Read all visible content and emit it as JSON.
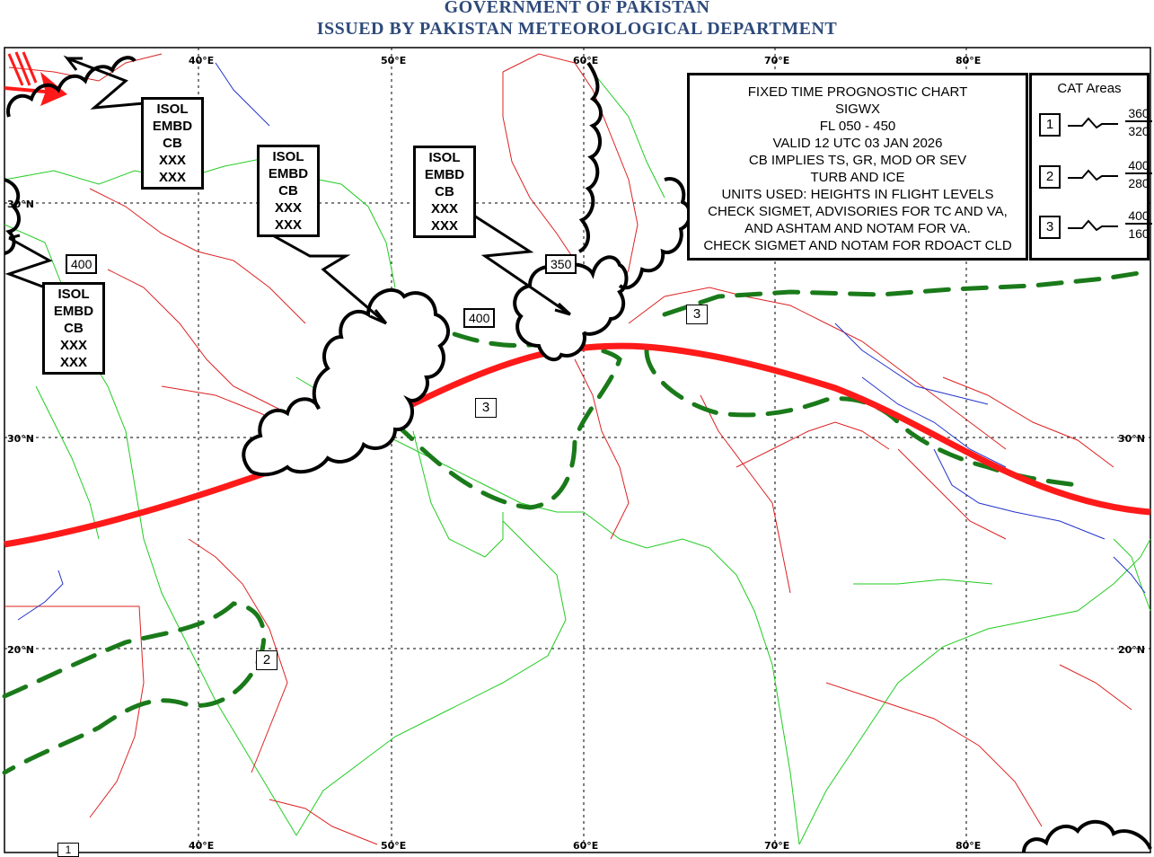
{
  "header": {
    "line1": "GOVERNMENT OF PAKISTAN",
    "line2": "ISSUED BY PAKISTAN METEOROLOGICAL DEPARTMENT"
  },
  "grid_labels": {
    "top": [
      "40°E",
      "50°E",
      "60°E",
      "70°E",
      "80°E"
    ],
    "bottom": [
      "40°E",
      "50°E",
      "60°E",
      "70°E",
      "80°E"
    ],
    "left": [
      "30°N",
      "30°N",
      "20°N"
    ],
    "right": [
      "30°N",
      "20°N"
    ]
  },
  "cb_boxes": [
    {
      "lines": [
        "ISOL",
        "EMBD",
        "CB",
        "XXX",
        "XXX"
      ]
    },
    {
      "lines": [
        "ISOL",
        "EMBD",
        "CB",
        "XXX",
        "XXX"
      ]
    },
    {
      "lines": [
        "ISOL",
        "EMBD",
        "CB",
        "XXX",
        "XXX"
      ]
    },
    {
      "lines": [
        "ISOL",
        "EMBD",
        "CB",
        "XXX",
        "XXX"
      ]
    }
  ],
  "flight_levels": [
    "400",
    "400",
    "350"
  ],
  "cat_area_labels": [
    "3",
    "3",
    "2",
    "1"
  ],
  "info": {
    "lines": [
      "FIXED TIME PROGNOSTIC CHART",
      "SIGWX",
      "FL 050 - 450",
      "VALID 12 UTC 03 JAN 2026",
      "CB IMPLIES TS, GR, MOD OR SEV",
      "TURB AND ICE",
      "UNITS USED: HEIGHTS IN FLIGHT LEVELS",
      "CHECK SIGMET, ADVISORIES FOR TC AND VA,",
      "AND ASHTAM AND NOTAM FOR VA.",
      "CHECK SIGMET AND NOTAM FOR RDOACT CLD"
    ]
  },
  "cat_legend": {
    "title": "CAT Areas",
    "rows": [
      {
        "num": "1",
        "top": "360",
        "bottom": "320"
      },
      {
        "num": "2",
        "top": "400",
        "bottom": "280"
      },
      {
        "num": "3",
        "top": "400",
        "bottom": "160"
      }
    ]
  },
  "colors": {
    "jet_stream": "#ff1a1a",
    "cat_boundary": "#1a7a1a",
    "coastline": "#22cc22",
    "borders": "#dd2222",
    "rivers": "#2233cc",
    "header": "#2e4a7a"
  }
}
